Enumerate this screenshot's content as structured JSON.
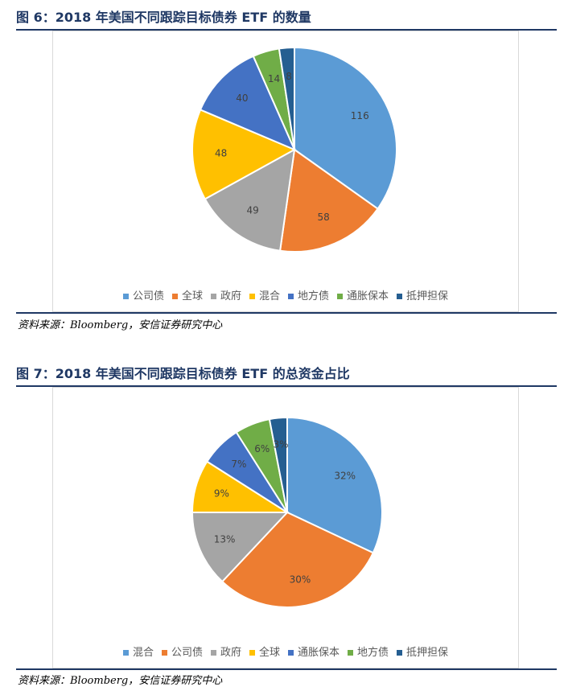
{
  "charts": [
    {
      "figure_title": "图 6：2018 年美国不同跟踪目标债券 ETF 的数量",
      "source": "资料来源：Bloomberg，安信证券研究中心",
      "chart_data": {
        "type": "pie",
        "title": "",
        "categories": [
          "公司债",
          "全球",
          "政府",
          "混合",
          "地方债",
          "通胀保本",
          "抵押担保"
        ],
        "values": [
          116,
          58,
          49,
          48,
          40,
          14,
          8
        ],
        "labels": [
          "116",
          "58",
          "49",
          "48",
          "40",
          "14",
          "8"
        ],
        "colors": [
          "#5b9bd5",
          "#ed7d31",
          "#a5a5a5",
          "#ffc000",
          "#4472c4",
          "#70ad47",
          "#255e91"
        ],
        "legend_position": "bottom"
      }
    },
    {
      "figure_title": "图 7：2018 年美国不同跟踪目标债券 ETF 的总资金占比",
      "source": "资料来源：Bloomberg，安信证券研究中心",
      "chart_data": {
        "type": "pie",
        "title": "",
        "categories": [
          "混合",
          "公司债",
          "政府",
          "全球",
          "通胀保本",
          "地方债",
          "抵押担保"
        ],
        "values": [
          32,
          30,
          13,
          9,
          7,
          6,
          3
        ],
        "labels": [
          "32%",
          "30%",
          "13%",
          "9%",
          "7%",
          "6%",
          "3%"
        ],
        "colors": [
          "#5b9bd5",
          "#ed7d31",
          "#a5a5a5",
          "#ffc000",
          "#4472c4",
          "#70ad47",
          "#255e91"
        ],
        "legend_position": "bottom"
      }
    }
  ]
}
